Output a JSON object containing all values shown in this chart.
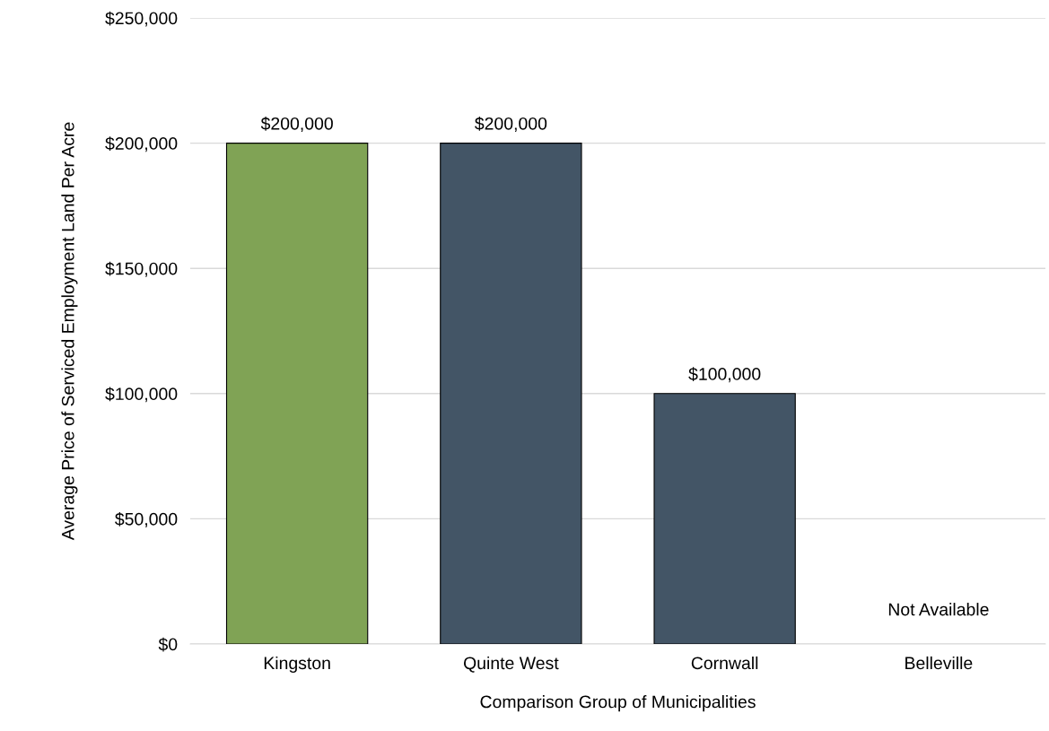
{
  "chart_data": {
    "type": "bar",
    "xlabel": "Comparison Group of Municipalities",
    "ylabel": "Average Price of Serviced Employment Land Per Acre",
    "categories": [
      "Kingston",
      "Quinte West",
      "Cornwall",
      "Belleville"
    ],
    "values": [
      200000,
      200000,
      100000,
      null
    ],
    "colors": [
      "#80a355",
      "#435566",
      "#435566",
      "#435566"
    ],
    "value_labels": [
      "$200,000",
      "$200,000",
      "$100,000",
      "Not Available"
    ],
    "ylim": [
      0,
      250000
    ],
    "yticks": [
      {
        "value": 0,
        "label": "$0"
      },
      {
        "value": 50000,
        "label": "$50,000"
      },
      {
        "value": 100000,
        "label": "$100,000"
      },
      {
        "value": 150000,
        "label": "$150,000"
      },
      {
        "value": 200000,
        "label": "$200,000"
      },
      {
        "value": 250000,
        "label": "$250,000"
      }
    ],
    "grid": "y"
  }
}
